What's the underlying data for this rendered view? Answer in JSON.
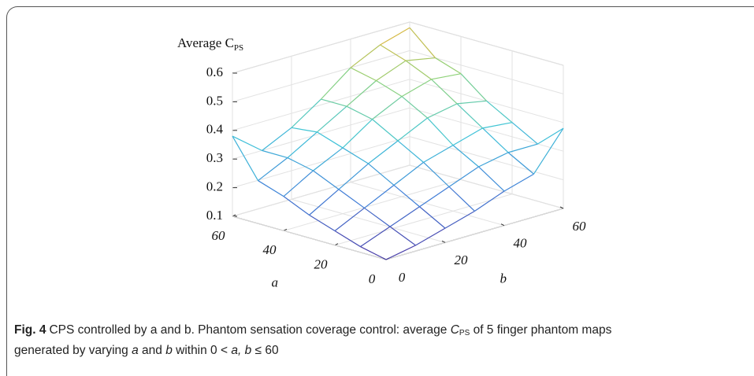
{
  "chart_data": {
    "type": "mesh",
    "z_label": "Average C",
    "z_label_sub": "PS",
    "a_label": "a",
    "b_label": "b",
    "a_values": [
      0,
      10,
      20,
      30,
      40,
      50,
      60
    ],
    "b_values": [
      0,
      10,
      20,
      30,
      40,
      50,
      60
    ],
    "z": [
      [
        0.1,
        0.12,
        0.15,
        0.18,
        0.22,
        0.25,
        0.38
      ],
      [
        0.12,
        0.16,
        0.2,
        0.24,
        0.28,
        0.3,
        0.3
      ],
      [
        0.15,
        0.2,
        0.25,
        0.3,
        0.33,
        0.36,
        0.35
      ],
      [
        0.18,
        0.24,
        0.3,
        0.35,
        0.4,
        0.42,
        0.4
      ],
      [
        0.22,
        0.28,
        0.33,
        0.4,
        0.45,
        0.48,
        0.47
      ],
      [
        0.25,
        0.3,
        0.36,
        0.42,
        0.48,
        0.52,
        0.5
      ],
      [
        0.38,
        0.3,
        0.35,
        0.42,
        0.5,
        0.55,
        0.58
      ]
    ],
    "alim": [
      0,
      60
    ],
    "blim": [
      0,
      60
    ],
    "zlim": [
      0.1,
      0.6
    ],
    "aticks": [
      0,
      20,
      40,
      60
    ],
    "bticks": [
      0,
      20,
      40,
      60
    ],
    "zticks": [
      0.1,
      0.2,
      0.3,
      0.4,
      0.5,
      0.6
    ],
    "grid": true,
    "colormap": [
      "#4b3aa6",
      "#3f7fd8",
      "#3ec4d8",
      "#8fd27a",
      "#f0b030"
    ]
  },
  "caption": {
    "label": "Fig. 4",
    "runs": [
      {
        "text": "CPS controlled by a and b. Phantom sensation coverage control: average ",
        "style": "normal"
      },
      {
        "text": "C",
        "style": "italic"
      },
      {
        "text": "PS",
        "style": "sub"
      },
      {
        "text": " of 5 finger phantom maps generated by varying ",
        "style": "normal"
      },
      {
        "text": "a",
        "style": "italic"
      },
      {
        "text": " and ",
        "style": "normal"
      },
      {
        "text": "b",
        "style": "italic"
      },
      {
        "text": " within 0 < ",
        "style": "normal"
      },
      {
        "text": "a, b",
        "style": "italic"
      },
      {
        "text": " ≤ 60",
        "style": "normal"
      }
    ]
  }
}
